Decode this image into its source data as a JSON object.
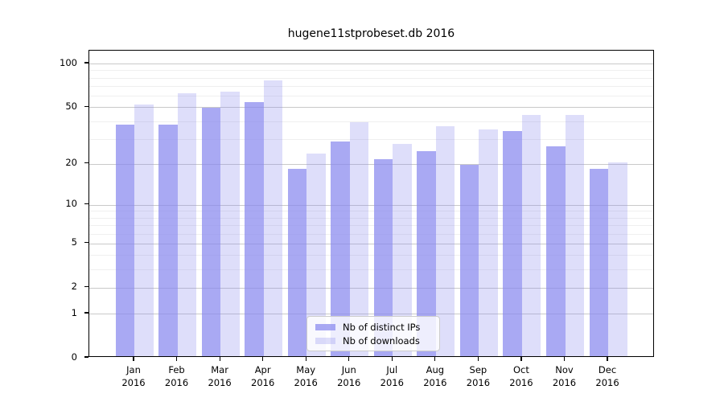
{
  "title": "hugene11stprobeset.db 2016",
  "colors": {
    "ips_bar": "rgba(136,136,238,0.72)",
    "downloads_bar": "rgba(136,136,238,0.28)",
    "grid_major": "#c9c9c9",
    "grid_minor": "#efefef",
    "axis": "#000000",
    "legend_border": "#cccccc"
  },
  "legend": {
    "items": [
      {
        "label": "Nb of distinct IPs",
        "swatch": "ips-swatch"
      },
      {
        "label": "Nb of downloads",
        "swatch": "downloads-swatch"
      }
    ]
  },
  "chart_data": {
    "type": "bar",
    "title": "hugene11stprobeset.db 2016",
    "categories": [
      "Jan",
      "Feb",
      "Mar",
      "Apr",
      "May",
      "Jun",
      "Jul",
      "Aug",
      "Sep",
      "Oct",
      "Nov",
      "Dec"
    ],
    "year_label": "2016",
    "series": [
      {
        "name": "Nb of distinct IPs",
        "color": "rgba(136,136,238,0.72)",
        "values": [
          37,
          37,
          48,
          53,
          18,
          28,
          21,
          24,
          19,
          33,
          26,
          18
        ]
      },
      {
        "name": "Nb of downloads",
        "color": "rgba(136,136,238,0.28)",
        "values": [
          51,
          61,
          62,
          75,
          23,
          38,
          27,
          36,
          34,
          43,
          43,
          20
        ]
      }
    ],
    "xlabel": "",
    "ylabel": "",
    "y_scale": "log1p",
    "y_ticks": [
      0,
      1,
      2,
      5,
      10,
      20,
      50,
      100
    ],
    "y_minor_ticks": [
      3,
      4,
      6,
      7,
      8,
      9,
      30,
      40,
      60,
      70,
      80,
      90
    ],
    "ylim": [
      0,
      123
    ],
    "grid": true,
    "legend_position": "lower-center"
  }
}
